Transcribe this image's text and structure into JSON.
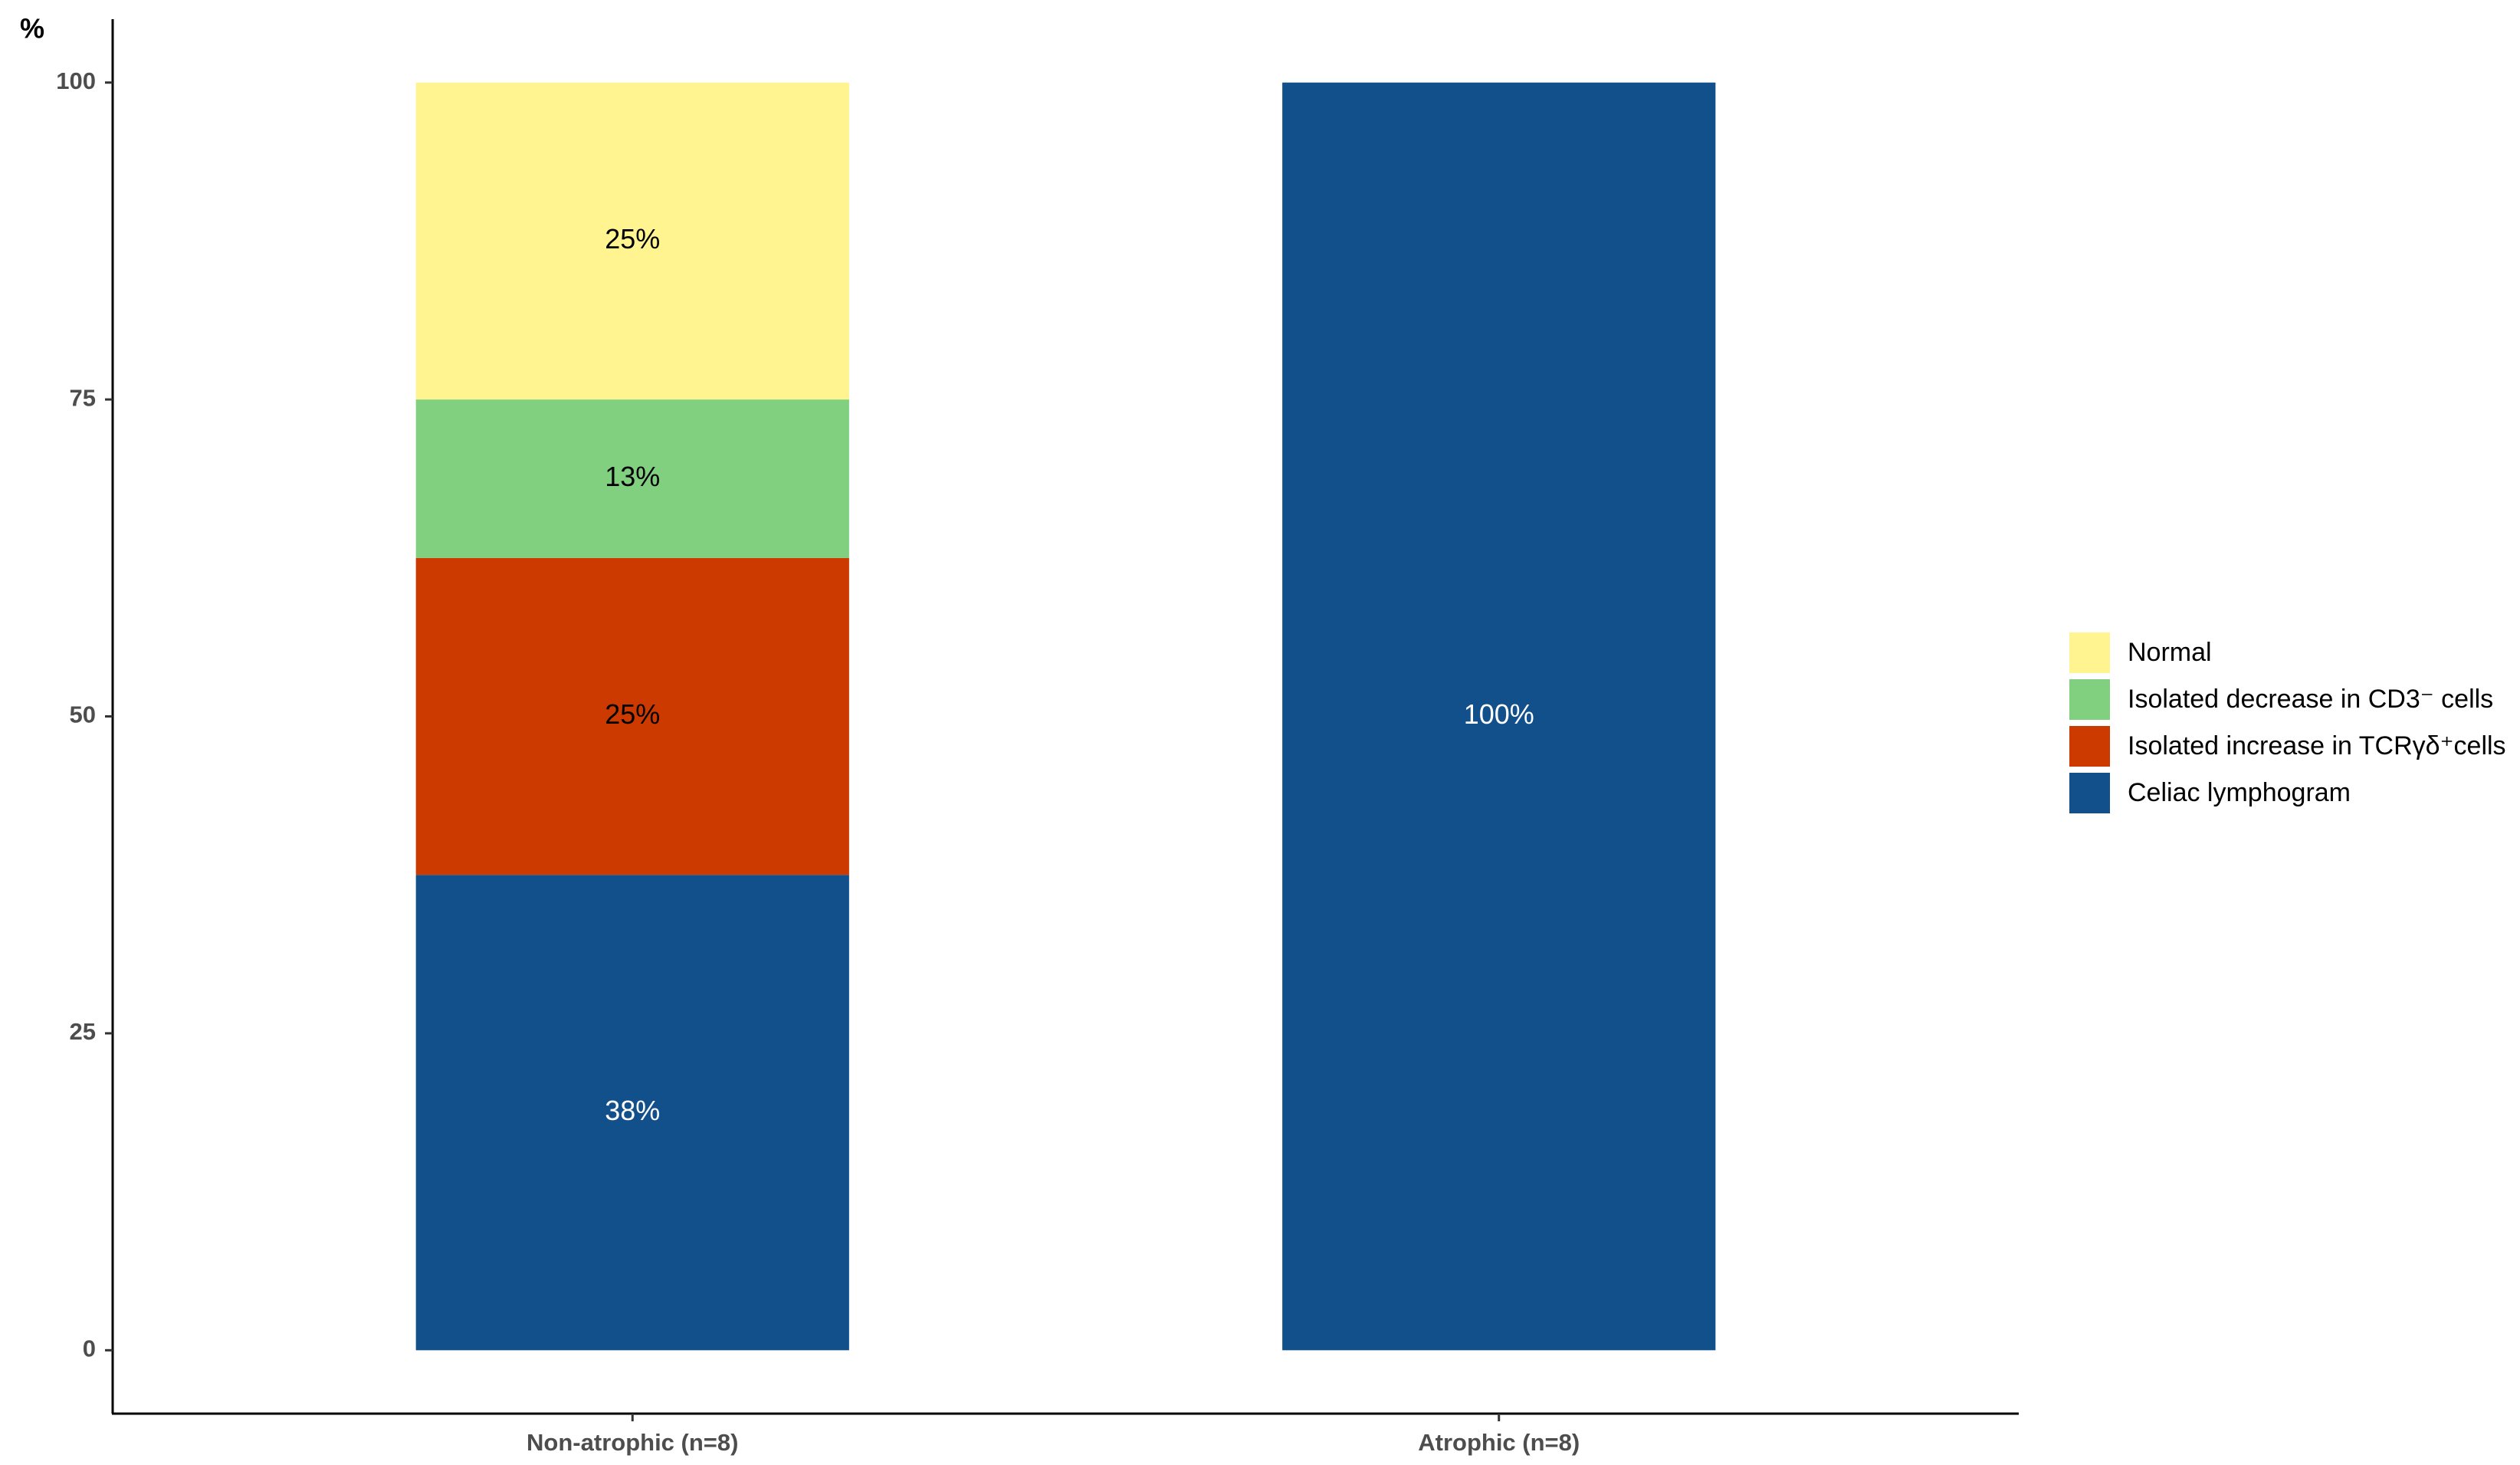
{
  "chart_data": {
    "type": "stacked_bar",
    "y_label": "%",
    "categories": [
      "Non-atrophic (n=8)",
      "Atrophic (n=8)"
    ],
    "series": [
      {
        "name": "Celiac lymphogram",
        "color": "#12508c",
        "label_color": "#ffffff",
        "values": [
          37.5,
          100
        ],
        "value_labels": [
          "38%",
          "100%"
        ]
      },
      {
        "name": "Isolated increase in TCRγδ⁺cells",
        "color": "#cc3a00",
        "label_color": "#000000",
        "values": [
          25,
          0
        ],
        "value_labels": [
          "25%",
          null
        ]
      },
      {
        "name": "Isolated decrease in CD3⁻ cells",
        "color": "#80d080",
        "label_color": "#000000",
        "values": [
          12.5,
          0
        ],
        "value_labels": [
          "13%",
          null
        ]
      },
      {
        "name": "Normal",
        "color": "#fff48f",
        "label_color": "#000000",
        "values": [
          25,
          0
        ],
        "value_labels": [
          "25%",
          null
        ]
      }
    ],
    "ylim": [
      -5,
      105
    ],
    "yticks": [
      0,
      25,
      50,
      75,
      100
    ],
    "grid": false,
    "legend": "right"
  }
}
